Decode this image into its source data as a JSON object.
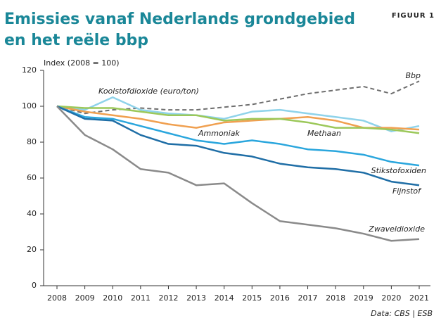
{
  "chart_data": {
    "type": "line",
    "title": [
      "Emissies vanaf Nederlands grondgebied",
      "en het reële bbp"
    ],
    "figure_label": "FIGUUR 1",
    "y_label": "Index (2008 = 100)",
    "source": "Data: CBS | ESB",
    "categories": [
      "2008",
      "2009",
      "2010",
      "2011",
      "2012",
      "2013",
      "2014",
      "2015",
      "2016",
      "2017",
      "2018",
      "2019",
      "2020",
      "2021"
    ],
    "ylim": [
      0,
      120
    ],
    "yticks": [
      0,
      20,
      40,
      60,
      80,
      100,
      120
    ],
    "grid": false,
    "series": [
      {
        "name": "Bbp",
        "color": "#6e6e6e",
        "dashed": true,
        "values": [
          100,
          96,
          98,
          99,
          98,
          98,
          99.5,
          101,
          104,
          107,
          109,
          111,
          107,
          114
        ]
      },
      {
        "name": "Koolstofdioxide (euro/ton)",
        "color": "#8fd3ea",
        "values": [
          100,
          98,
          105,
          98,
          96,
          95,
          93,
          97,
          98,
          96,
          94,
          92,
          86,
          89
        ]
      },
      {
        "name": "Ammoniak",
        "color": "#f0a050",
        "values": [
          100,
          97,
          95,
          93,
          90,
          88,
          91,
          92,
          93,
          94,
          92,
          88,
          88,
          87
        ]
      },
      {
        "name": "Methaan",
        "color": "#9cc85a",
        "values": [
          100,
          99,
          99,
          97,
          95,
          95,
          92,
          93,
          93,
          91,
          88,
          88,
          87,
          85
        ]
      },
      {
        "name": "Stikstofoxiden",
        "color": "#2aa6dd",
        "values": [
          100,
          94,
          93,
          89,
          85,
          81,
          79,
          81,
          79,
          76,
          75,
          73,
          69,
          67
        ]
      },
      {
        "name": "Fijnstof",
        "color": "#1f6ea6",
        "values": [
          100,
          93,
          92,
          84,
          79,
          78,
          74,
          72,
          68,
          66,
          65,
          63,
          58,
          56
        ]
      },
      {
        "name": "Zwaveldioxide",
        "color": "#8a8a8a",
        "values": [
          100,
          84,
          76,
          65,
          63,
          56,
          57,
          46,
          36,
          34,
          32,
          29,
          25,
          26
        ]
      }
    ]
  }
}
